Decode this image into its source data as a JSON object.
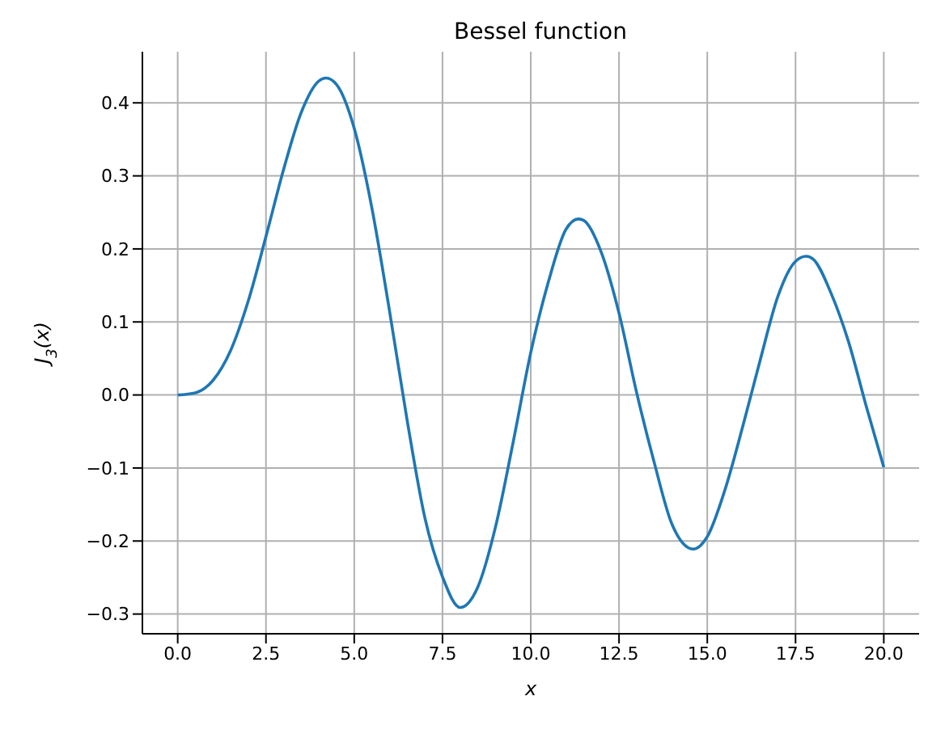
{
  "chart_data": {
    "type": "line",
    "title": "Bessel function",
    "xlabel": "x",
    "ylabel": "J$_{3}$(x)",
    "x": [
      0,
      0.5,
      1,
      1.5,
      2,
      2.5,
      3,
      3.5,
      4,
      4.2,
      4.5,
      5,
      5.5,
      6,
      6.5,
      7,
      7.5,
      8,
      8.5,
      9,
      9.5,
      10,
      10.5,
      11,
      11.35,
      11.5,
      12,
      12.5,
      13,
      13.5,
      14,
      14.6,
      15,
      15.5,
      16,
      16.5,
      17,
      17.5,
      17.8,
      18,
      18.5,
      19,
      19.5,
      20
    ],
    "series": [
      {
        "color": "#1f77b4",
        "values": [
          0,
          0.003,
          0.02,
          0.061,
          0.129,
          0.217,
          0.309,
          0.387,
          0.43,
          0.434,
          0.425,
          0.365,
          0.256,
          0.115,
          -0.035,
          -0.168,
          -0.249,
          -0.291,
          -0.263,
          -0.181,
          -0.065,
          0.058,
          0.155,
          0.227,
          0.241,
          0.239,
          0.195,
          0.112,
          0.003,
          -0.093,
          -0.177,
          -0.211,
          -0.194,
          -0.13,
          -0.044,
          0.048,
          0.135,
          0.183,
          0.19,
          0.186,
          0.14,
          0.073,
          -0.015,
          -0.099
        ]
      }
    ],
    "xlim": [
      -1,
      21
    ],
    "xticks": [
      {
        "value": 0,
        "label": "0.0"
      },
      {
        "value": 2.5,
        "label": "2.5"
      },
      {
        "value": 5,
        "label": "5.0"
      },
      {
        "value": 7.5,
        "label": "7.5"
      },
      {
        "value": 10,
        "label": "10.0"
      },
      {
        "value": 12.5,
        "label": "12.5"
      },
      {
        "value": 15,
        "label": "15.0"
      },
      {
        "value": 17.5,
        "label": "17.5"
      },
      {
        "value": 20,
        "label": "20.0"
      }
    ],
    "ylim": [
      -0.327,
      0.47
    ],
    "yticks": [
      {
        "value": -0.3,
        "label": "−0.3"
      },
      {
        "value": -0.2,
        "label": "−0.2"
      },
      {
        "value": -0.1,
        "label": "−0.1"
      },
      {
        "value": 0,
        "label": "0.0"
      },
      {
        "value": 0.1,
        "label": "0.1"
      },
      {
        "value": 0.2,
        "label": "0.2"
      },
      {
        "value": 0.3,
        "label": "0.3"
      },
      {
        "value": 0.4,
        "label": "0.4"
      }
    ],
    "grid": true,
    "marker": "none",
    "line_style": "solid"
  }
}
